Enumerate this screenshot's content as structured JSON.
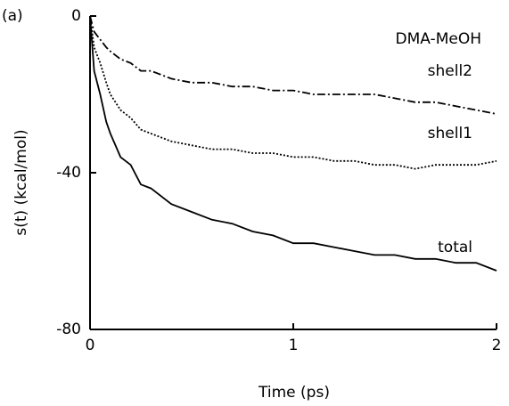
{
  "chart_data": {
    "type": "line",
    "panel_label": "(a)",
    "annotation": "DMA-MeOH",
    "xlabel": "Time (ps)",
    "ylabel": "s(t)   (kcal/mol)",
    "x": [
      0,
      0.02,
      0.05,
      0.08,
      0.1,
      0.15,
      0.2,
      0.25,
      0.3,
      0.4,
      0.5,
      0.6,
      0.7,
      0.8,
      0.9,
      1.0,
      1.1,
      1.2,
      1.3,
      1.4,
      1.5,
      1.6,
      1.7,
      1.8,
      1.9,
      2.0
    ],
    "series": [
      {
        "name": "shell2",
        "color": "#000000",
        "style": "dashdot",
        "values": [
          0,
          -4,
          -6,
          -8,
          -9,
          -11,
          -12,
          -14,
          -14,
          -16,
          -17,
          -17,
          -18,
          -18,
          -19,
          -19,
          -20,
          -20,
          -20,
          -20,
          -21,
          -22,
          -22,
          -23,
          -24,
          -25
        ]
      },
      {
        "name": "shell1",
        "color": "#000000",
        "style": "dotted",
        "values": [
          0,
          -8,
          -12,
          -17,
          -20,
          -24,
          -26,
          -29,
          -30,
          -32,
          -33,
          -34,
          -34,
          -35,
          -35,
          -36,
          -36,
          -37,
          -37,
          -38,
          -38,
          -39,
          -38,
          -38,
          -38,
          -37
        ]
      },
      {
        "name": "total",
        "color": "#000000",
        "style": "solid",
        "values": [
          0,
          -14,
          -20,
          -27,
          -30,
          -36,
          -38,
          -43,
          -44,
          -48,
          -50,
          -52,
          -53,
          -55,
          -56,
          -58,
          -58,
          -59,
          -60,
          -61,
          -61,
          -62,
          -62,
          -63,
          -63,
          -65
        ]
      }
    ],
    "xlim": [
      0,
      2
    ],
    "xticks": [
      0,
      1,
      2
    ],
    "ylim": [
      -80,
      0
    ],
    "yticks": [
      0,
      -40,
      -80
    ],
    "grid": false
  }
}
